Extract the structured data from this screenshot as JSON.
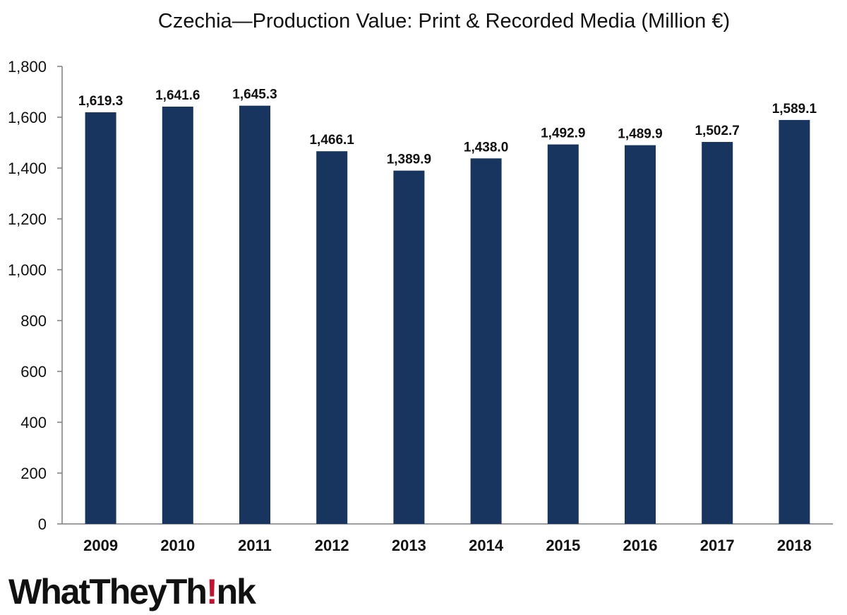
{
  "chart_data": {
    "type": "bar",
    "title": "Czechia—Production Value: Print & Recorded Media (Million €)",
    "categories": [
      "2009",
      "2010",
      "2011",
      "2012",
      "2013",
      "2014",
      "2015",
      "2016",
      "2017",
      "2018"
    ],
    "values": [
      1619.3,
      1641.6,
      1645.3,
      1466.1,
      1389.9,
      1438.0,
      1492.9,
      1489.9,
      1502.7,
      1589.1
    ],
    "data_labels": [
      "1,619.3",
      "1,641.6",
      "1,645.3",
      "1,466.1",
      "1,389.9",
      "1,438.0",
      "1,492.9",
      "1,489.9",
      "1,502.7",
      "1,589.1"
    ],
    "yticks": [
      0,
      200,
      400,
      600,
      800,
      1000,
      1200,
      1400,
      1600,
      1800
    ],
    "ytick_labels": [
      "0",
      "200",
      "400",
      "600",
      "800",
      "1,000",
      "1,200",
      "1,400",
      "1,600",
      "1,800"
    ],
    "ylim": [
      0,
      1800
    ],
    "xlabel": "",
    "ylabel": "",
    "grid": false,
    "legend": "none",
    "bar_color": "#17355e"
  },
  "logo": {
    "text_before": "WhatTheyTh",
    "text_mark": "!",
    "text_after": "nk",
    "mark_color": "#c8102e"
  }
}
